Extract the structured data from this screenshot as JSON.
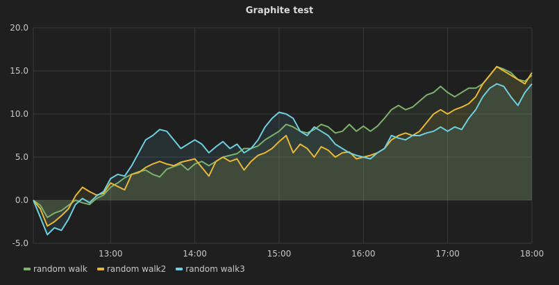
{
  "chart_data": {
    "type": "line",
    "title": "Graphite test",
    "xlabel": "",
    "ylabel": "",
    "x_range": [
      "12:05",
      "18:00"
    ],
    "x_ticks": [
      "13:00",
      "14:00",
      "15:00",
      "16:00",
      "17:00",
      "18:00"
    ],
    "y_ticks": [
      "20.0",
      "15.0",
      "10.0",
      "5.0",
      "0.0",
      "-5.0"
    ],
    "ylim": [
      -5,
      20
    ],
    "grid": true,
    "area_fill": true,
    "legend_position": "bottom-left",
    "series": [
      {
        "name": "random walk",
        "color": "#7eb26d",
        "points": [
          [
            "12:05",
            0
          ],
          [
            "12:10",
            -0.6
          ],
          [
            "12:15",
            -2
          ],
          [
            "12:20",
            -1.5
          ],
          [
            "12:25",
            -1.2
          ],
          [
            "12:30",
            -0.6
          ],
          [
            "12:35",
            0
          ],
          [
            "12:40",
            -0.3
          ],
          [
            "12:45",
            -0.5
          ],
          [
            "12:50",
            0.2
          ],
          [
            "12:55",
            0.6
          ],
          [
            "13:00",
            1.5
          ],
          [
            "13:05",
            2.0
          ],
          [
            "13:10",
            2.6
          ],
          [
            "13:15",
            3.0
          ],
          [
            "13:20",
            3.3
          ],
          [
            "13:25",
            3.5
          ],
          [
            "13:30",
            3.0
          ],
          [
            "13:35",
            2.7
          ],
          [
            "13:40",
            3.6
          ],
          [
            "13:45",
            3.9
          ],
          [
            "13:50",
            4.2
          ],
          [
            "13:55",
            3.5
          ],
          [
            "14:00",
            4.2
          ],
          [
            "14:05",
            4.5
          ],
          [
            "14:10",
            4.0
          ],
          [
            "14:15",
            4.5
          ],
          [
            "14:20",
            5.0
          ],
          [
            "14:25",
            5.2
          ],
          [
            "14:30",
            5.4
          ],
          [
            "14:35",
            6.0
          ],
          [
            "14:40",
            6.0
          ],
          [
            "14:45",
            6.3
          ],
          [
            "14:50",
            7.0
          ],
          [
            "14:55",
            7.5
          ],
          [
            "15:00",
            8.0
          ],
          [
            "15:05",
            8.8
          ],
          [
            "15:10",
            8.5
          ],
          [
            "15:15",
            8.0
          ],
          [
            "15:20",
            7.8
          ],
          [
            "15:25",
            8.2
          ],
          [
            "15:30",
            8.8
          ],
          [
            "15:35",
            8.5
          ],
          [
            "15:40",
            7.8
          ],
          [
            "15:45",
            8.0
          ],
          [
            "15:50",
            8.8
          ],
          [
            "15:55",
            8.0
          ],
          [
            "16:00",
            8.6
          ],
          [
            "16:05",
            8.0
          ],
          [
            "16:10",
            8.6
          ],
          [
            "16:15",
            9.5
          ],
          [
            "16:20",
            10.5
          ],
          [
            "16:25",
            11.0
          ],
          [
            "16:30",
            10.5
          ],
          [
            "16:35",
            10.8
          ],
          [
            "16:40",
            11.5
          ],
          [
            "16:45",
            12.2
          ],
          [
            "16:50",
            12.5
          ],
          [
            "16:55",
            13.2
          ],
          [
            "17:00",
            12.5
          ],
          [
            "17:05",
            12.0
          ],
          [
            "17:10",
            12.5
          ],
          [
            "17:15",
            13.0
          ],
          [
            "17:20",
            13.0
          ],
          [
            "17:25",
            13.5
          ],
          [
            "17:30",
            14.5
          ],
          [
            "17:35",
            15.5
          ],
          [
            "17:40",
            15.2
          ],
          [
            "17:45",
            14.8
          ],
          [
            "17:50",
            14.0
          ],
          [
            "17:55",
            13.8
          ],
          [
            "18:00",
            14.5
          ]
        ]
      },
      {
        "name": "random walk2",
        "color": "#eab839",
        "points": [
          [
            "12:05",
            0
          ],
          [
            "12:10",
            -1.0
          ],
          [
            "12:15",
            -3.0
          ],
          [
            "12:20",
            -2.5
          ],
          [
            "12:25",
            -1.8
          ],
          [
            "12:30",
            -1.0
          ],
          [
            "12:35",
            0.5
          ],
          [
            "12:40",
            1.5
          ],
          [
            "12:45",
            1.0
          ],
          [
            "12:50",
            0.6
          ],
          [
            "12:55",
            0.8
          ],
          [
            "13:00",
            2.0
          ],
          [
            "13:05",
            1.6
          ],
          [
            "13:10",
            1.2
          ],
          [
            "13:15",
            3.0
          ],
          [
            "13:20",
            3.2
          ],
          [
            "13:25",
            3.8
          ],
          [
            "13:30",
            4.2
          ],
          [
            "13:35",
            4.5
          ],
          [
            "13:40",
            4.2
          ],
          [
            "13:45",
            4.0
          ],
          [
            "13:50",
            4.4
          ],
          [
            "13:55",
            4.6
          ],
          [
            "14:00",
            4.8
          ],
          [
            "14:05",
            3.8
          ],
          [
            "14:10",
            2.8
          ],
          [
            "14:15",
            4.5
          ],
          [
            "14:20",
            5.0
          ],
          [
            "14:25",
            4.5
          ],
          [
            "14:30",
            4.8
          ],
          [
            "14:35",
            3.5
          ],
          [
            "14:40",
            4.5
          ],
          [
            "14:45",
            5.2
          ],
          [
            "14:50",
            5.5
          ],
          [
            "14:55",
            6.0
          ],
          [
            "15:00",
            6.8
          ],
          [
            "15:05",
            7.5
          ],
          [
            "15:10",
            5.5
          ],
          [
            "15:15",
            6.5
          ],
          [
            "15:20",
            6.0
          ],
          [
            "15:25",
            5.0
          ],
          [
            "15:30",
            6.2
          ],
          [
            "15:35",
            5.8
          ],
          [
            "15:40",
            5.0
          ],
          [
            "15:45",
            5.5
          ],
          [
            "15:50",
            5.6
          ],
          [
            "15:55",
            4.8
          ],
          [
            "16:00",
            5.0
          ],
          [
            "16:05",
            5.2
          ],
          [
            "16:10",
            5.5
          ],
          [
            "16:15",
            6.0
          ],
          [
            "16:20",
            7.0
          ],
          [
            "16:25",
            7.5
          ],
          [
            "16:30",
            7.8
          ],
          [
            "16:35",
            7.5
          ],
          [
            "16:40",
            8.0
          ],
          [
            "16:45",
            9.0
          ],
          [
            "16:50",
            10.0
          ],
          [
            "16:55",
            10.5
          ],
          [
            "17:00",
            10.0
          ],
          [
            "17:05",
            10.5
          ],
          [
            "17:10",
            10.8
          ],
          [
            "17:15",
            11.2
          ],
          [
            "17:20",
            12.0
          ],
          [
            "17:25",
            13.5
          ],
          [
            "17:30",
            14.5
          ],
          [
            "17:35",
            15.5
          ],
          [
            "17:40",
            15.0
          ],
          [
            "17:45",
            14.5
          ],
          [
            "17:50",
            14.0
          ],
          [
            "17:55",
            13.5
          ],
          [
            "18:00",
            14.8
          ]
        ]
      },
      {
        "name": "random walk3",
        "color": "#6ed0e0",
        "points": [
          [
            "12:05",
            0
          ],
          [
            "12:10",
            -2.0
          ],
          [
            "12:15",
            -4.0
          ],
          [
            "12:20",
            -3.2
          ],
          [
            "12:25",
            -3.5
          ],
          [
            "12:30",
            -2.2
          ],
          [
            "12:35",
            -0.5
          ],
          [
            "12:40",
            0.2
          ],
          [
            "12:45",
            -0.3
          ],
          [
            "12:50",
            0.5
          ],
          [
            "12:55",
            1.0
          ],
          [
            "13:00",
            2.5
          ],
          [
            "13:05",
            3.0
          ],
          [
            "13:10",
            2.8
          ],
          [
            "13:15",
            4.0
          ],
          [
            "13:20",
            5.5
          ],
          [
            "13:25",
            7.0
          ],
          [
            "13:30",
            7.5
          ],
          [
            "13:35",
            8.2
          ],
          [
            "13:40",
            8.0
          ],
          [
            "13:45",
            7.0
          ],
          [
            "13:50",
            6.0
          ],
          [
            "13:55",
            6.5
          ],
          [
            "14:00",
            7.0
          ],
          [
            "14:05",
            6.5
          ],
          [
            "14:10",
            5.5
          ],
          [
            "14:15",
            6.2
          ],
          [
            "14:20",
            6.8
          ],
          [
            "14:25",
            6.0
          ],
          [
            "14:30",
            6.5
          ],
          [
            "14:35",
            5.5
          ],
          [
            "14:40",
            6.0
          ],
          [
            "14:45",
            7.0
          ],
          [
            "14:50",
            8.5
          ],
          [
            "14:55",
            9.5
          ],
          [
            "15:00",
            10.2
          ],
          [
            "15:05",
            10.0
          ],
          [
            "15:10",
            9.5
          ],
          [
            "15:15",
            8.0
          ],
          [
            "15:20",
            7.5
          ],
          [
            "15:25",
            8.5
          ],
          [
            "15:30",
            8.0
          ],
          [
            "15:35",
            7.5
          ],
          [
            "15:40",
            6.5
          ],
          [
            "15:45",
            6.0
          ],
          [
            "15:50",
            5.5
          ],
          [
            "15:55",
            5.2
          ],
          [
            "16:00",
            5.0
          ],
          [
            "16:05",
            4.8
          ],
          [
            "16:10",
            5.5
          ],
          [
            "16:15",
            6.0
          ],
          [
            "16:20",
            7.5
          ],
          [
            "16:25",
            7.2
          ],
          [
            "16:30",
            7.0
          ],
          [
            "16:35",
            7.5
          ],
          [
            "16:40",
            7.5
          ],
          [
            "16:45",
            7.8
          ],
          [
            "16:50",
            8.0
          ],
          [
            "16:55",
            8.5
          ],
          [
            "17:00",
            8.0
          ],
          [
            "17:05",
            8.5
          ],
          [
            "17:10",
            8.2
          ],
          [
            "17:15",
            9.5
          ],
          [
            "17:20",
            10.5
          ],
          [
            "17:25",
            12.0
          ],
          [
            "17:30",
            13.0
          ],
          [
            "17:35",
            13.5
          ],
          [
            "17:40",
            13.2
          ],
          [
            "17:45",
            12.0
          ],
          [
            "17:50",
            11.0
          ],
          [
            "17:55",
            12.5
          ],
          [
            "18:00",
            13.5
          ]
        ]
      }
    ]
  }
}
